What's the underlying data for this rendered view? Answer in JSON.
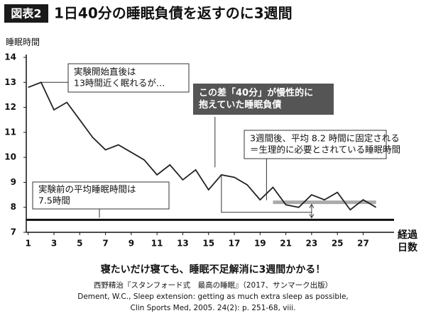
{
  "badge": "図表2",
  "chart_data": {
    "type": "line",
    "title": "1日40分の睡眠負債を返すのに3週間",
    "ylabel": "睡眠時間",
    "xlabel": [
      "経過",
      "日数"
    ],
    "x": [
      1,
      2,
      3,
      4,
      5,
      6,
      7,
      8,
      9,
      10,
      11,
      12,
      13,
      14,
      15,
      16,
      17,
      18,
      19,
      20,
      21,
      22,
      23,
      24,
      25,
      26,
      27,
      28
    ],
    "series": [
      {
        "name": "睡眠時間",
        "color": "#222222",
        "values": [
          12.8,
          13.0,
          11.9,
          12.2,
          11.5,
          10.8,
          10.3,
          10.5,
          10.2,
          9.9,
          9.3,
          9.7,
          9.1,
          9.5,
          8.7,
          9.3,
          9.2,
          8.9,
          8.3,
          8.8,
          8.1,
          8.0,
          8.5,
          8.3,
          8.6,
          7.9,
          8.3,
          8.0
        ]
      }
    ],
    "xlim": [
      0.85,
      29.4
    ],
    "ylim": [
      7,
      14
    ],
    "xticks": [
      1,
      3,
      5,
      7,
      9,
      11,
      13,
      15,
      17,
      19,
      21,
      23,
      25,
      27
    ],
    "yticks": [
      7,
      8,
      9,
      10,
      11,
      12,
      13,
      14
    ],
    "hlines": [
      {
        "y": 7.5,
        "color": "#111111"
      },
      {
        "y": 8.2,
        "xrange": [
          20,
          28
        ],
        "color": "#aaaaaa"
      }
    ],
    "annotations": [
      {
        "lines": [
          "実験開始直後は",
          "13時間近く眠れるが…"
        ]
      },
      {
        "lines": [
          "この差「40分」が慢性的に",
          "抱えていた睡眠負債"
        ]
      },
      {
        "lines": [
          "3週間後、平均 8.2 時間に固定される",
          "＝生理的に必要とされている睡眠時間"
        ]
      },
      {
        "lines": [
          "実験前の平均睡眠時間は",
          "7.5時間"
        ]
      }
    ]
  },
  "caption": "寝たいだけ寝ても、睡眠不足解消に3週間かかる！",
  "source": [
    "西野精治『スタンフォード式　最高の睡眠』（2017、サンマーク出版）",
    "Dement, W.C., Sleep extension: getting as much extra sleep as possible,",
    "Clin Sports Med, 2005. 24(2): p. 251-68, viii."
  ]
}
